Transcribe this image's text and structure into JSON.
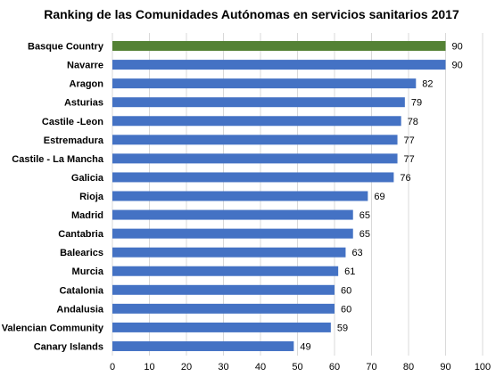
{
  "chart_data": {
    "type": "bar",
    "orientation": "horizontal",
    "title": "Ranking de las Comunidades Autónomas en servicios sanitarios 2017",
    "categories": [
      "Basque Country",
      "Navarre",
      "Aragon",
      "Asturias",
      "Castile -Leon",
      "Estremadura",
      "Castile - La Mancha",
      "Galicia",
      "Rioja",
      "Madrid",
      "Cantabria",
      "Balearics",
      "Murcia",
      "Catalonia",
      "Andalusia",
      "Valencian Community",
      "Canary Islands"
    ],
    "values": [
      90,
      90,
      82,
      79,
      78,
      77,
      77,
      76,
      69,
      65,
      65,
      63,
      61,
      60,
      60,
      59,
      49
    ],
    "xlim": [
      0,
      100
    ],
    "xticks": [
      "0",
      "10",
      "20",
      "30",
      "40",
      "50",
      "60",
      "70",
      "80",
      "90",
      "100"
    ],
    "grid": "vertical",
    "legend": "none",
    "colors": {
      "highlight": "#548235",
      "bar": "#4472C4",
      "gridline": "#d9d9d9"
    },
    "highlight_index": 0
  }
}
